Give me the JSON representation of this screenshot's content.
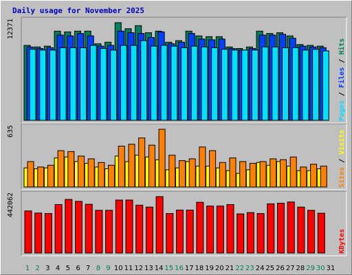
{
  "title": "Daily usage for November 2025",
  "colors": {
    "hits": "#00805c",
    "files": "#0040ff",
    "pages": "#00e0ff",
    "visits": "#ffff00",
    "sites": "#ff8000",
    "kbytes": "#ff0000",
    "weekday": "#000000",
    "weekend": "#00805c"
  },
  "chart_data": [
    {
      "type": "bar",
      "categories": [
        "1",
        "2",
        "3",
        "4",
        "5",
        "6",
        "7",
        "8",
        "9",
        "10",
        "11",
        "12",
        "13",
        "14",
        "15",
        "16",
        "17",
        "18",
        "19",
        "20",
        "21",
        "22",
        "23",
        "24",
        "25",
        "26",
        "27",
        "28",
        "29",
        "30",
        "31"
      ],
      "max_label": "12371",
      "ylim": [
        0,
        12371
      ],
      "legend": [
        "Pages",
        "Files",
        "Hits"
      ],
      "series": [
        {
          "name": "Hits",
          "color": "#00805c",
          "values": [
            9500,
            9300,
            9400,
            11300,
            11200,
            11300,
            11300,
            9700,
            9900,
            12371,
            11600,
            12000,
            11100,
            11300,
            9900,
            10100,
            11300,
            10700,
            10600,
            10600,
            9300,
            9100,
            9300,
            11300,
            11000,
            11100,
            10700,
            9600,
            9500,
            9400,
            0
          ]
        },
        {
          "name": "Files",
          "color": "#0040ff",
          "values": [
            9300,
            9100,
            9200,
            10800,
            10700,
            11000,
            10700,
            9400,
            9500,
            11300,
            11100,
            11000,
            10500,
            11200,
            9700,
            9900,
            11000,
            10300,
            10200,
            10300,
            9100,
            8900,
            9100,
            10800,
            10800,
            10900,
            10400,
            9400,
            9300,
            9200,
            0
          ]
        },
        {
          "name": "Pages",
          "color": "#00e0ff",
          "values": [
            9000,
            8900,
            8900,
            9200,
            9200,
            9200,
            9500,
            9100,
            8900,
            9500,
            9500,
            10100,
            9400,
            9500,
            9400,
            9200,
            9400,
            9300,
            9200,
            9000,
            8900,
            8900,
            8900,
            9300,
            9300,
            9200,
            9200,
            8900,
            9000,
            8800,
            0
          ]
        }
      ]
    },
    {
      "type": "bar",
      "categories": [
        "1",
        "2",
        "3",
        "4",
        "5",
        "6",
        "7",
        "8",
        "9",
        "10",
        "11",
        "12",
        "13",
        "14",
        "15",
        "16",
        "17",
        "18",
        "19",
        "20",
        "21",
        "22",
        "23",
        "24",
        "25",
        "26",
        "27",
        "28",
        "29",
        "30",
        "31"
      ],
      "max_label": "635",
      "ylim": [
        0,
        635
      ],
      "legend": [
        "Sites",
        "Visits"
      ],
      "series": [
        {
          "name": "Visits",
          "color": "#ffff00",
          "values": [
            210,
            200,
            210,
            320,
            330,
            280,
            260,
            220,
            200,
            340,
            280,
            350,
            330,
            300,
            190,
            210,
            280,
            230,
            230,
            210,
            180,
            150,
            190,
            270,
            240,
            280,
            230,
            180,
            180,
            200,
            0
          ]
        },
        {
          "name": "Sites",
          "color": "#ff8000",
          "values": [
            280,
            220,
            240,
            400,
            390,
            340,
            310,
            270,
            240,
            450,
            470,
            540,
            460,
            635,
            350,
            290,
            310,
            440,
            400,
            270,
            320,
            280,
            260,
            280,
            310,
            300,
            330,
            220,
            250,
            230,
            0
          ]
        }
      ]
    },
    {
      "type": "bar",
      "categories": [
        "1",
        "2",
        "3",
        "4",
        "5",
        "6",
        "7",
        "8",
        "9",
        "10",
        "11",
        "12",
        "13",
        "14",
        "15",
        "16",
        "17",
        "18",
        "19",
        "20",
        "21",
        "22",
        "23",
        "24",
        "25",
        "26",
        "27",
        "28",
        "29",
        "30",
        "31"
      ],
      "max_label": "442062",
      "ylim": [
        0,
        442062
      ],
      "legend": [
        "KBytes"
      ],
      "series": [
        {
          "name": "KBytes",
          "color": "#ff0000",
          "values": [
            330000,
            313000,
            310000,
            380000,
            420000,
            405000,
            382000,
            335000,
            335000,
            415000,
            415000,
            375000,
            360000,
            442062,
            310000,
            337000,
            337000,
            398000,
            368000,
            368000,
            380000,
            307000,
            317000,
            310000,
            386000,
            391000,
            400000,
            360000,
            335000,
            312000,
            0
          ]
        }
      ]
    }
  ],
  "day_labels": [
    {
      "label": "1",
      "weekend": true
    },
    {
      "label": "2",
      "weekend": true
    },
    {
      "label": "3",
      "weekend": false
    },
    {
      "label": "4",
      "weekend": false
    },
    {
      "label": "5",
      "weekend": false
    },
    {
      "label": "6",
      "weekend": false
    },
    {
      "label": "7",
      "weekend": false
    },
    {
      "label": "8",
      "weekend": true
    },
    {
      "label": "9",
      "weekend": true
    },
    {
      "label": "10",
      "weekend": false
    },
    {
      "label": "11",
      "weekend": false
    },
    {
      "label": "12",
      "weekend": false
    },
    {
      "label": "13",
      "weekend": false
    },
    {
      "label": "14",
      "weekend": false
    },
    {
      "label": "15",
      "weekend": true
    },
    {
      "label": "16",
      "weekend": true
    },
    {
      "label": "17",
      "weekend": false
    },
    {
      "label": "18",
      "weekend": false
    },
    {
      "label": "19",
      "weekend": false
    },
    {
      "label": "20",
      "weekend": false
    },
    {
      "label": "21",
      "weekend": false
    },
    {
      "label": "22",
      "weekend": true
    },
    {
      "label": "23",
      "weekend": true
    },
    {
      "label": "24",
      "weekend": false
    },
    {
      "label": "25",
      "weekend": false
    },
    {
      "label": "26",
      "weekend": false
    },
    {
      "label": "27",
      "weekend": false
    },
    {
      "label": "28",
      "weekend": false
    },
    {
      "label": "29",
      "weekend": true
    },
    {
      "label": "30",
      "weekend": true
    },
    {
      "label": "31",
      "weekend": false
    }
  ]
}
